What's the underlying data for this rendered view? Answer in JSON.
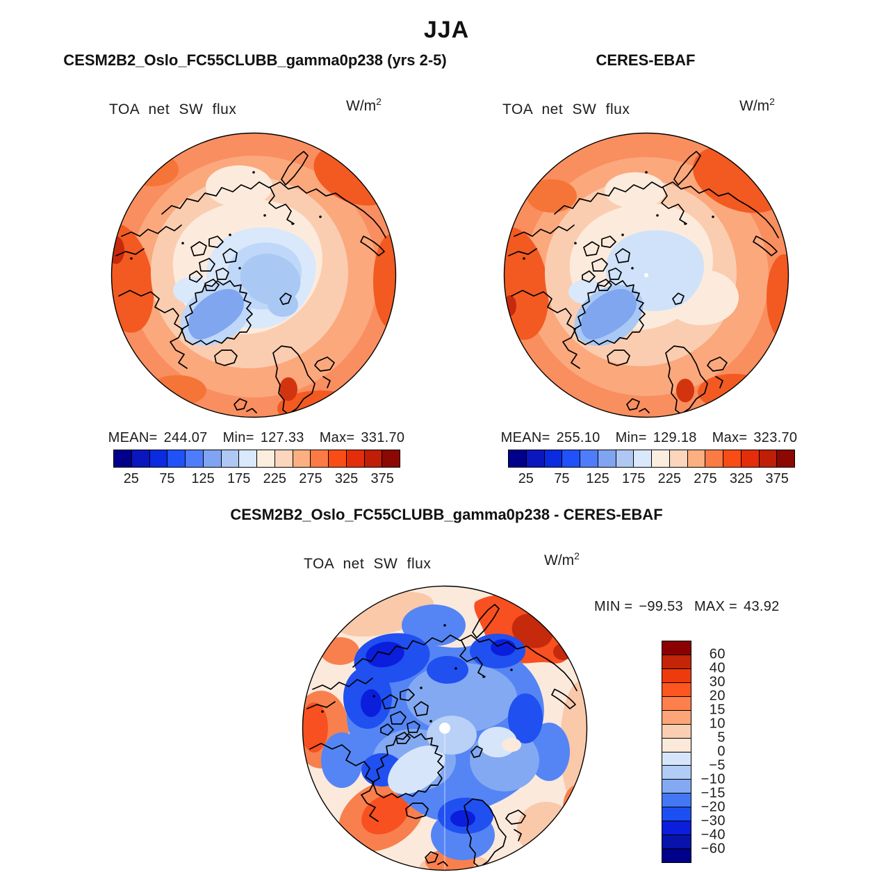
{
  "figure_title": "JJA",
  "panels": {
    "model": {
      "title": "CESM2B2_Oslo_FC55CLUBB_gamma0p238 (yrs 2-5)",
      "field_label": "TOA net SW flux",
      "units_base": "W/m",
      "units_exponent": "2",
      "stats": {
        "mean_label": "MEAN=",
        "mean": "244.07",
        "min_label": "Min=",
        "min": "127.33",
        "max_label": "Max=",
        "max": "331.70"
      }
    },
    "obs": {
      "title": "CERES-EBAF",
      "field_label": "TOA net SW flux",
      "units_base": "W/m",
      "units_exponent": "2",
      "stats": {
        "mean_label": "MEAN=",
        "mean": "255.10",
        "min_label": "Min=",
        "min": "129.18",
        "max_label": "Max=",
        "max": "323.70"
      }
    },
    "diff": {
      "title": "CESM2B2_Oslo_FC55CLUBB_gamma0p238 - CERES-EBAF",
      "field_label": "TOA net SW flux",
      "units_base": "W/m",
      "units_exponent": "2",
      "stats": {
        "min_label": "MIN =",
        "min": "−99.53",
        "max_label": "MAX =",
        "max": "43.92"
      }
    }
  },
  "colorbars": {
    "flux": {
      "orientation": "horizontal",
      "cell_colors": [
        "#00008B",
        "#0A16BE",
        "#0B2BE0",
        "#2151F8",
        "#4F7CFA",
        "#7FA4F2",
        "#AEC8F3",
        "#D9E8FB",
        "#FCEEDF",
        "#FBD5BC",
        "#FCAF80",
        "#FC7B44",
        "#FA4D16",
        "#E42D0B",
        "#C01E07",
        "#8B0803"
      ],
      "tick_labels": [
        "25",
        "75",
        "125",
        "175",
        "225",
        "275",
        "325",
        "375"
      ]
    },
    "diff": {
      "orientation": "vertical",
      "cell_colors": [
        "#8B0000",
        "#C32508",
        "#EE3B0D",
        "#FC5520",
        "#FC7F4C",
        "#FBA578",
        "#FACEB2",
        "#FBE9D9",
        "#D6E5FA",
        "#B1CCF5",
        "#83A9F2",
        "#4478F2",
        "#1C4FF2",
        "#0B1EDC",
        "#0713AA",
        "#00008B"
      ],
      "boundary_labels": [
        "60",
        "40",
        "30",
        "20",
        "15",
        "10",
        "5",
        "0",
        "−5",
        "−10",
        "−15",
        "−20",
        "−30",
        "−40",
        "−60"
      ]
    }
  },
  "chart_data": [
    {
      "type": "heatmap",
      "panel": "model",
      "projection": "north_polar_stereographic",
      "season": "JJA",
      "title": "CESM2B2_Oslo_FC55CLUBB_gamma0p238 (yrs 2-5)",
      "variable": "TOA net SW flux",
      "units": "W/m^2",
      "mean": 244.07,
      "min": 127.33,
      "max": 331.7,
      "colorbar_tick_values": [
        25,
        75,
        125,
        175,
        225,
        275,
        325,
        375
      ],
      "contour_interval": 25,
      "palette": [
        "#00008B",
        "#0A16BE",
        "#0B2BE0",
        "#2151F8",
        "#4F7CFA",
        "#7FA4F2",
        "#AEC8F3",
        "#D9E8FB",
        "#FCEEDF",
        "#FBD5BC",
        "#FCAF80",
        "#FC7B44",
        "#FA4D16",
        "#E42D0B",
        "#C01E07",
        "#8B0803"
      ],
      "legend_position": "below",
      "grid": false
    },
    {
      "type": "heatmap",
      "panel": "observations",
      "projection": "north_polar_stereographic",
      "season": "JJA",
      "title": "CERES-EBAF",
      "variable": "TOA net SW flux",
      "units": "W/m^2",
      "mean": 255.1,
      "min": 129.18,
      "max": 323.7,
      "colorbar_tick_values": [
        25,
        75,
        125,
        175,
        225,
        275,
        325,
        375
      ],
      "contour_interval": 25,
      "palette": [
        "#00008B",
        "#0A16BE",
        "#0B2BE0",
        "#2151F8",
        "#4F7CFA",
        "#7FA4F2",
        "#AEC8F3",
        "#D9E8FB",
        "#FCEEDF",
        "#FBD5BC",
        "#FCAF80",
        "#FC7B44",
        "#FA4D16",
        "#E42D0B",
        "#C01E07",
        "#8B0803"
      ],
      "legend_position": "below",
      "grid": false
    },
    {
      "type": "heatmap",
      "panel": "difference",
      "projection": "north_polar_stereographic",
      "season": "JJA",
      "title": "CESM2B2_Oslo_FC55CLUBB_gamma0p238 - CERES-EBAF",
      "variable": "TOA net SW flux",
      "units": "W/m^2",
      "min": -99.53,
      "max": 43.92,
      "levels": [
        -60,
        -40,
        -30,
        -20,
        -15,
        -10,
        -5,
        0,
        5,
        10,
        15,
        20,
        30,
        40,
        60
      ],
      "palette_top_to_bottom": [
        "#8B0000",
        "#C32508",
        "#EE3B0D",
        "#FC5520",
        "#FC7F4C",
        "#FBA578",
        "#FACEB2",
        "#FBE9D9",
        "#D6E5FA",
        "#B1CCF5",
        "#83A9F2",
        "#4478F2",
        "#1C4FF2",
        "#0B1EDC",
        "#0713AA",
        "#00008B"
      ],
      "legend_position": "right",
      "grid": false
    }
  ]
}
